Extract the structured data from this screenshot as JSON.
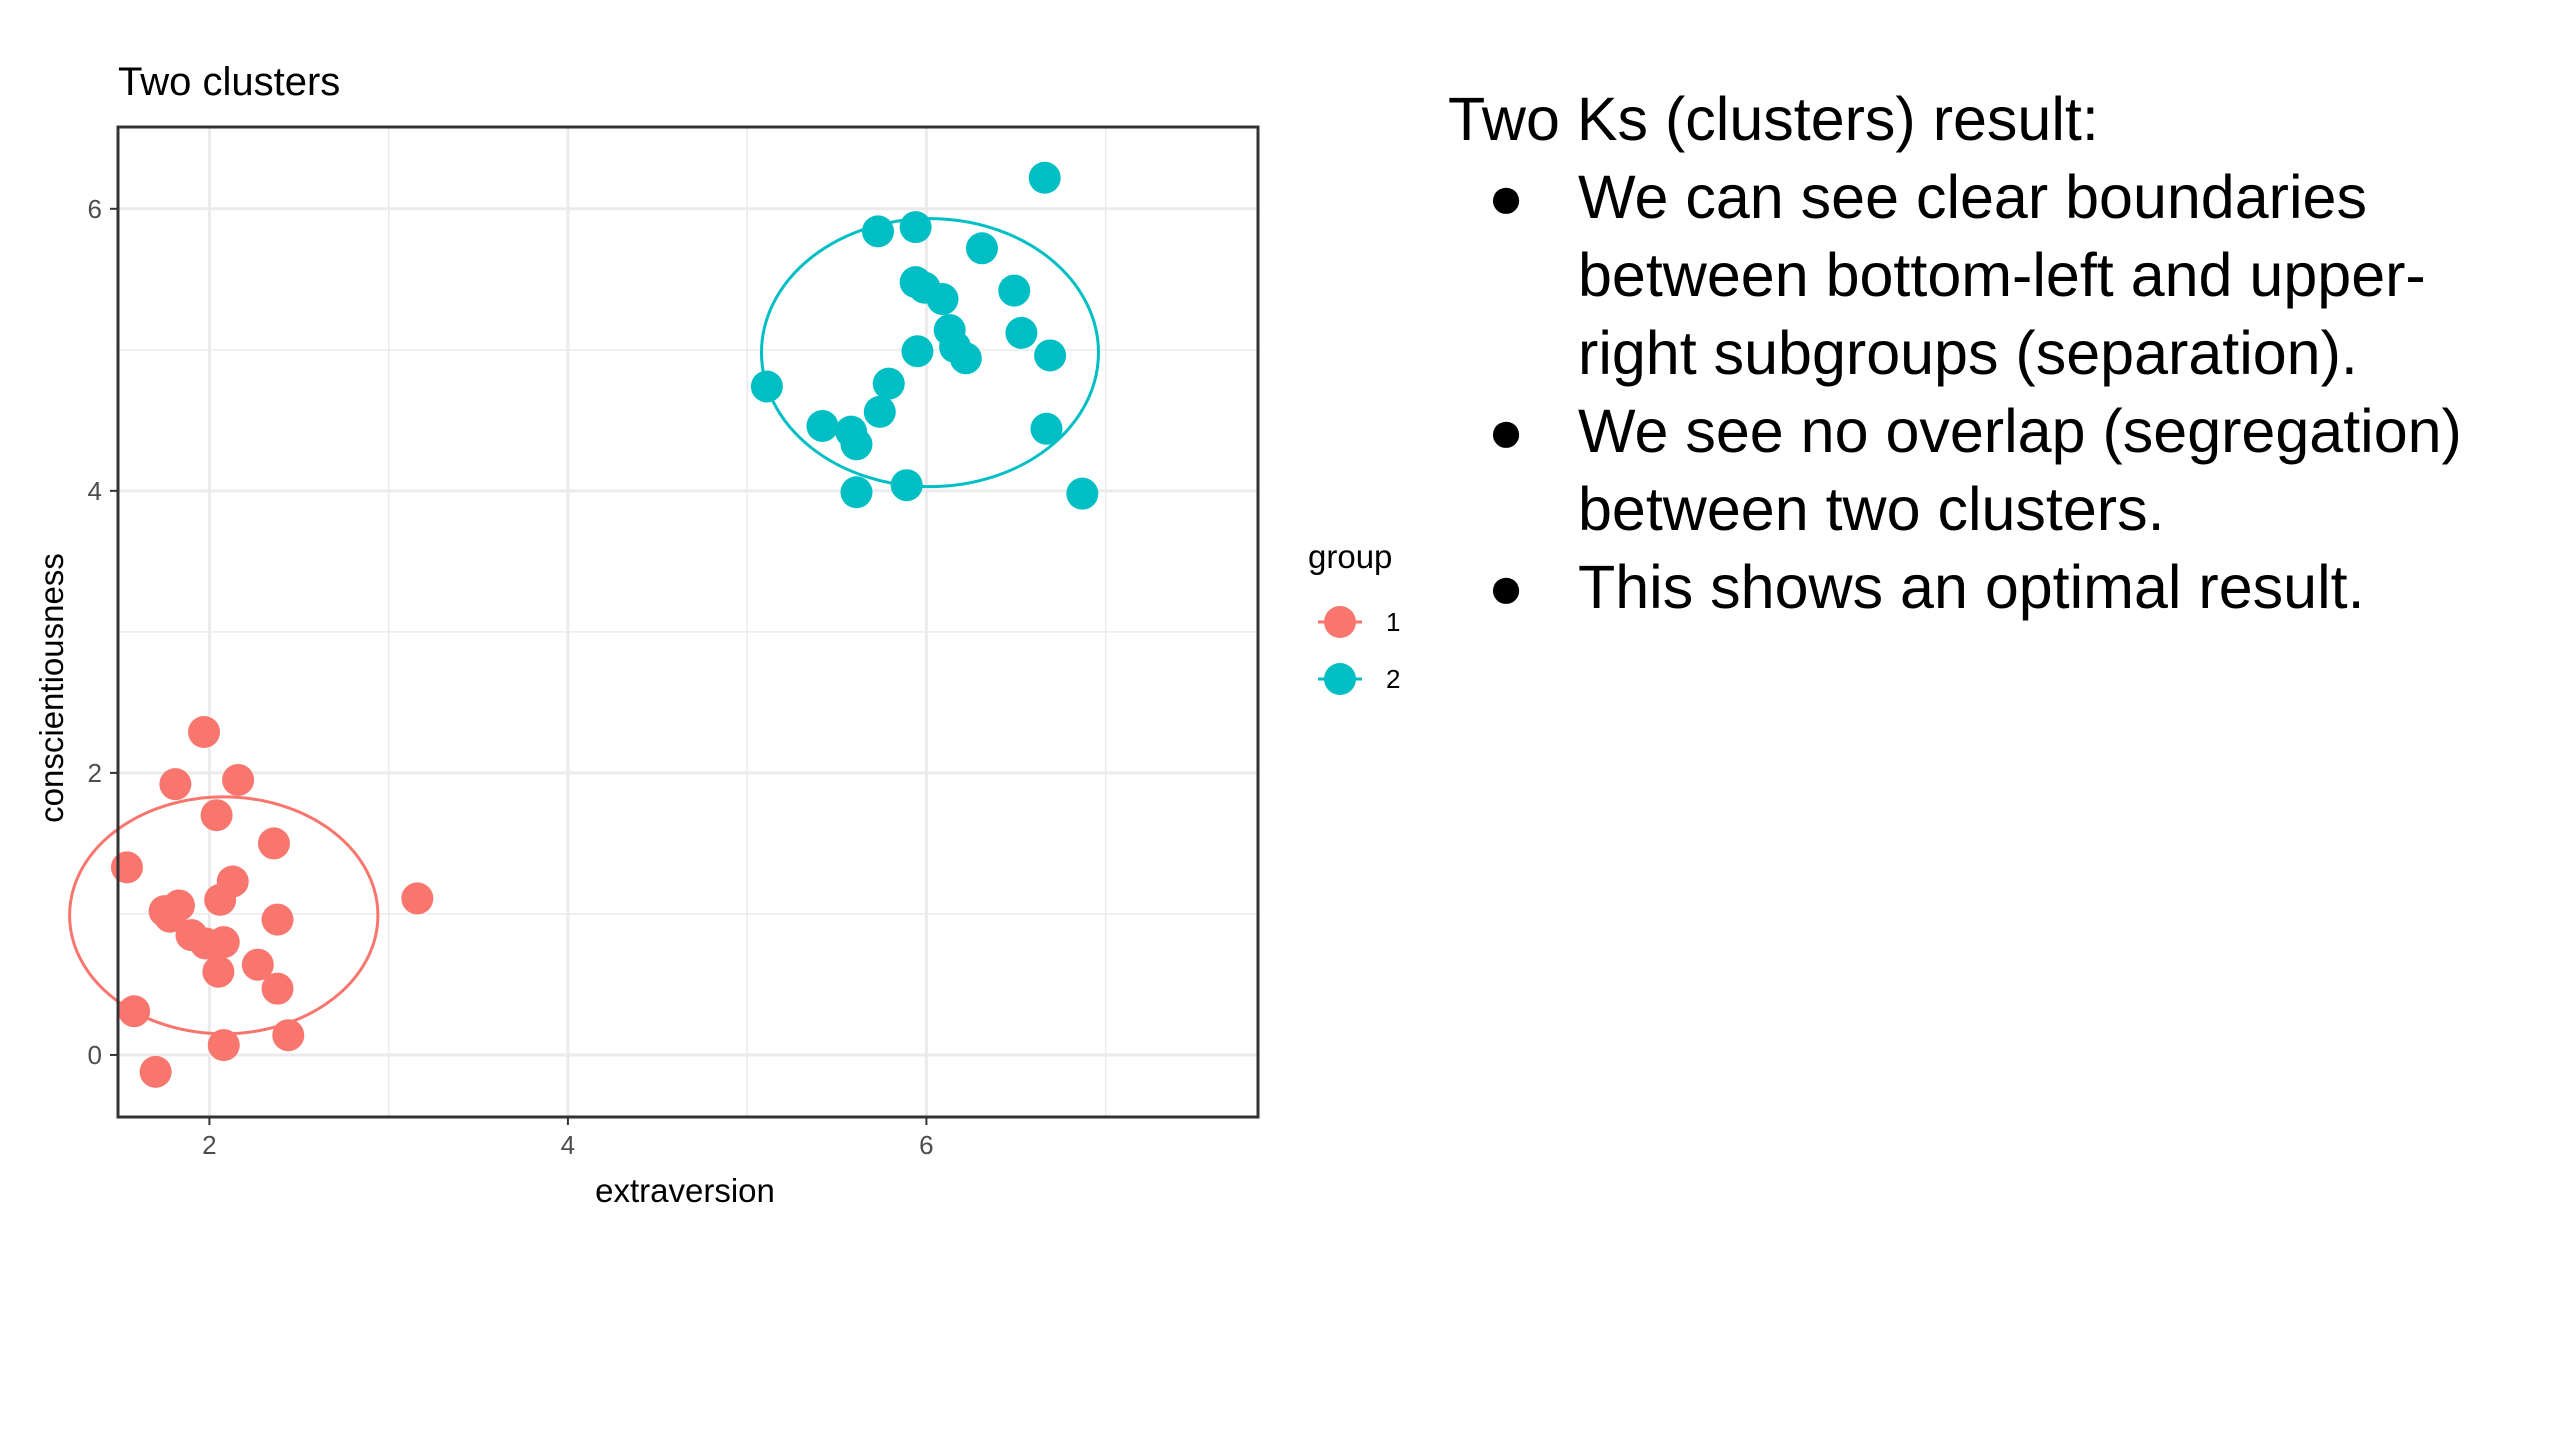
{
  "chart_data": {
    "type": "scatter",
    "title": "Two clusters",
    "xlabel": "extraversion",
    "ylabel": "conscientiousness",
    "xlim": [
      1.49,
      7.85
    ],
    "ylim": [
      -0.44,
      6.58
    ],
    "x_ticks": [
      2,
      4,
      6
    ],
    "x_tick_labels": [
      "2",
      "4",
      "6"
    ],
    "y_ticks": [
      0,
      2,
      4,
      6
    ],
    "y_tick_labels": [
      "0",
      "2",
      "4",
      "6"
    ],
    "grid": true,
    "legend": {
      "title": "group",
      "position": "right"
    },
    "series": [
      {
        "name": "1",
        "color": "#F8766D",
        "points": [
          {
            "x": 1.97,
            "y": 2.29
          },
          {
            "x": 1.81,
            "y": 1.92
          },
          {
            "x": 2.16,
            "y": 1.95
          },
          {
            "x": 2.04,
            "y": 1.7
          },
          {
            "x": 2.36,
            "y": 1.5
          },
          {
            "x": 1.54,
            "y": 1.33
          },
          {
            "x": 2.13,
            "y": 1.23
          },
          {
            "x": 2.06,
            "y": 1.1
          },
          {
            "x": 3.16,
            "y": 1.11
          },
          {
            "x": 1.83,
            "y": 1.06
          },
          {
            "x": 1.75,
            "y": 1.02
          },
          {
            "x": 1.78,
            "y": 0.98
          },
          {
            "x": 2.38,
            "y": 0.96
          },
          {
            "x": 1.9,
            "y": 0.85
          },
          {
            "x": 1.98,
            "y": 0.79
          },
          {
            "x": 2.08,
            "y": 0.8
          },
          {
            "x": 2.27,
            "y": 0.64
          },
          {
            "x": 2.05,
            "y": 0.59
          },
          {
            "x": 2.38,
            "y": 0.47
          },
          {
            "x": 1.58,
            "y": 0.31
          },
          {
            "x": 2.44,
            "y": 0.14
          },
          {
            "x": 2.08,
            "y": 0.07
          },
          {
            "x": 1.7,
            "y": -0.12
          }
        ],
        "ellipse": {
          "cx": 2.08,
          "cy": 0.99,
          "rx": 0.86,
          "ry": 0.84
        }
      },
      {
        "name": "2",
        "color": "#00BFC4",
        "points": [
          {
            "x": 6.66,
            "y": 6.22
          },
          {
            "x": 5.73,
            "y": 5.84
          },
          {
            "x": 5.94,
            "y": 5.87
          },
          {
            "x": 6.31,
            "y": 5.72
          },
          {
            "x": 5.94,
            "y": 5.48
          },
          {
            "x": 5.99,
            "y": 5.44
          },
          {
            "x": 6.49,
            "y": 5.42
          },
          {
            "x": 6.09,
            "y": 5.36
          },
          {
            "x": 6.13,
            "y": 5.14
          },
          {
            "x": 6.53,
            "y": 5.12
          },
          {
            "x": 6.16,
            "y": 5.02
          },
          {
            "x": 5.95,
            "y": 4.99
          },
          {
            "x": 6.69,
            "y": 4.96
          },
          {
            "x": 6.22,
            "y": 4.94
          },
          {
            "x": 5.79,
            "y": 4.76
          },
          {
            "x": 5.11,
            "y": 4.74
          },
          {
            "x": 5.74,
            "y": 4.56
          },
          {
            "x": 5.42,
            "y": 4.46
          },
          {
            "x": 5.58,
            "y": 4.42
          },
          {
            "x": 5.61,
            "y": 4.33
          },
          {
            "x": 6.67,
            "y": 4.44
          },
          {
            "x": 5.89,
            "y": 4.04
          },
          {
            "x": 5.61,
            "y": 3.99
          },
          {
            "x": 6.87,
            "y": 3.98
          }
        ],
        "ellipse": {
          "cx": 6.02,
          "cy": 4.98,
          "rx": 0.94,
          "ry": 0.95
        }
      }
    ]
  },
  "text_panel": {
    "lead": "Two Ks (clusters) result:",
    "bullet_glyph": "●",
    "bullets": [
      "We can see clear boundaries between bottom-left and upper-right subgroups (separation).",
      "We see no overlap (segregation) between two clusters.",
      "This shows an optimal result."
    ]
  },
  "colors": {
    "panel_border": "#333333",
    "grid": "#EBEBEB",
    "axis_text": "#4D4D4D"
  }
}
